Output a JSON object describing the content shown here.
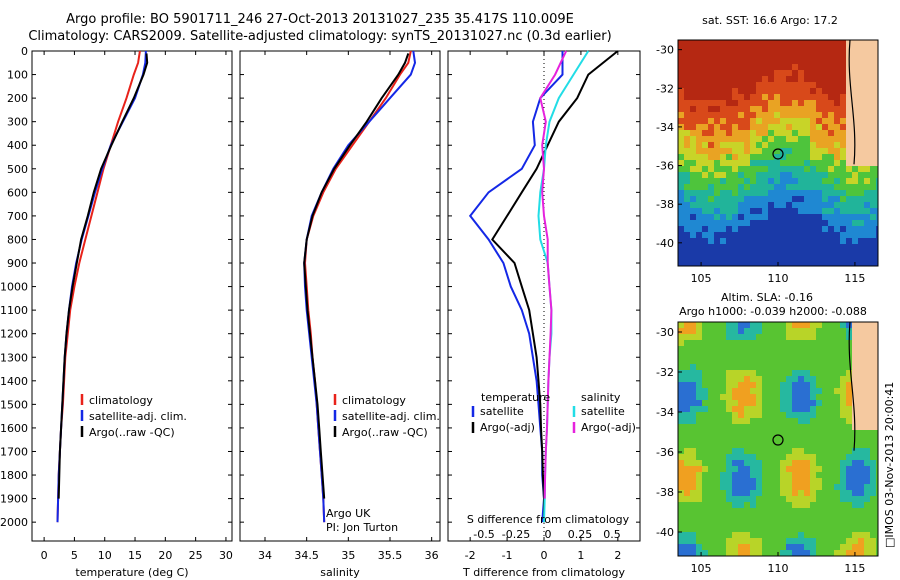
{
  "header": {
    "line1": "Argo profile: BO 5901711_246 27-Oct-2013 20131027_235 35.417S 110.009E",
    "line2": "Climatology: CARS2009. Satellite-adjusted climatology: synTS_20131027.nc (0.3d earlier)"
  },
  "stamp": "IMOS 03-Nov-2013 20:00:41",
  "colors": {
    "climatology": "#e8221a",
    "satellite": "#1428e6",
    "argo": "#000000",
    "sat_salinity": "#22dde6",
    "argo_salinity": "#e622dd"
  },
  "chart_data": [
    {
      "type": "line",
      "xlabel": "temperature (deg C)",
      "xlim": [
        -2,
        31
      ],
      "xticks": [
        0,
        5,
        10,
        15,
        20,
        25,
        30
      ],
      "ylim": [
        2080,
        0
      ],
      "yticks": [
        0,
        100,
        200,
        300,
        400,
        500,
        600,
        700,
        800,
        900,
        1000,
        1100,
        1200,
        1300,
        1400,
        1500,
        1600,
        1700,
        1800,
        1900,
        2000
      ],
      "legend": [
        "climatology",
        "satellite-adj. clim.",
        "Argo(..raw -QC)"
      ],
      "series": [
        {
          "name": "climatology",
          "color": "#e8221a",
          "x": [
            15.8,
            15.5,
            14.8,
            13.6,
            12.2,
            11.0,
            9.8,
            8.8,
            7.8,
            6.8,
            5.8,
            5.0,
            4.3,
            3.9,
            3.5,
            3.3,
            3.1,
            2.8,
            2.6,
            2.4,
            2.3,
            2.2
          ],
          "y": [
            0,
            50,
            100,
            200,
            300,
            400,
            500,
            600,
            700,
            800,
            900,
            1000,
            1100,
            1200,
            1300,
            1400,
            1500,
            1600,
            1700,
            1800,
            1900,
            2000
          ]
        },
        {
          "name": "satellite-adj. clim.",
          "color": "#1428e6",
          "x": [
            16.8,
            16.7,
            16.3,
            15.0,
            13.0,
            11.0,
            9.6,
            8.4,
            7.3,
            6.2,
            5.3,
            4.6,
            4.1,
            3.7,
            3.4,
            3.2,
            3.0,
            2.8,
            2.6,
            2.4,
            2.3,
            2.2
          ],
          "y": [
            0,
            50,
            100,
            200,
            300,
            400,
            500,
            600,
            700,
            800,
            900,
            1000,
            1100,
            1200,
            1300,
            1400,
            1500,
            1600,
            1700,
            1800,
            1900,
            2000
          ]
        },
        {
          "name": "Argo(..raw -QC)",
          "color": "#000000",
          "x": [
            16.9,
            17.0,
            16.4,
            14.8,
            12.9,
            11.1,
            9.4,
            8.2,
            7.2,
            6.1,
            5.4,
            4.7,
            4.1,
            3.7,
            3.4,
            3.2,
            3.0,
            2.8,
            2.6,
            2.5,
            2.4
          ],
          "y": [
            10,
            50,
            100,
            200,
            300,
            400,
            500,
            600,
            700,
            800,
            900,
            1000,
            1100,
            1200,
            1300,
            1400,
            1500,
            1600,
            1700,
            1800,
            1900
          ]
        }
      ]
    },
    {
      "type": "line",
      "xlabel": "salinity",
      "xlim": [
        33.7,
        36.1
      ],
      "xticks": [
        34,
        34.5,
        35,
        35.5,
        36
      ],
      "xticklabels": [
        "34",
        "34.5",
        "35",
        "35.5",
        "36"
      ],
      "ylim": [
        2080,
        0
      ],
      "legend": [
        "climatology",
        "satellite-adj. clim.",
        "Argo(..raw -QC)"
      ],
      "annotation": [
        "Argo UK",
        "PI: Jon Turton"
      ],
      "series": [
        {
          "name": "climatology",
          "color": "#e8221a",
          "x": [
            35.75,
            35.72,
            35.62,
            35.45,
            35.25,
            35.05,
            34.85,
            34.7,
            34.58,
            34.5,
            34.48,
            34.5,
            34.52,
            34.55,
            34.57,
            34.6,
            34.62,
            34.64,
            34.66,
            34.68,
            34.7,
            34.71
          ],
          "y": [
            0,
            50,
            100,
            200,
            300,
            400,
            500,
            600,
            700,
            800,
            900,
            1000,
            1100,
            1200,
            1300,
            1400,
            1500,
            1600,
            1700,
            1800,
            1900,
            2000
          ]
        },
        {
          "name": "satellite-adj. clim.",
          "color": "#1428e6",
          "x": [
            35.78,
            35.8,
            35.75,
            35.5,
            35.25,
            35.0,
            34.82,
            34.68,
            34.56,
            34.5,
            34.47,
            34.48,
            34.5,
            34.53,
            34.56,
            34.59,
            34.62,
            34.64,
            34.66,
            34.68,
            34.7,
            34.71
          ],
          "y": [
            0,
            50,
            100,
            200,
            300,
            400,
            500,
            600,
            700,
            800,
            900,
            1000,
            1100,
            1200,
            1300,
            1400,
            1500,
            1600,
            1700,
            1800,
            1900,
            2000
          ]
        },
        {
          "name": "Argo(..raw -QC)",
          "color": "#000000",
          "x": [
            35.72,
            35.68,
            35.6,
            35.4,
            35.22,
            35.02,
            34.83,
            34.68,
            34.57,
            34.5,
            34.47,
            34.49,
            34.51,
            34.54,
            34.57,
            34.6,
            34.63,
            34.65,
            34.67,
            34.69,
            34.71
          ],
          "y": [
            10,
            50,
            100,
            200,
            300,
            400,
            500,
            600,
            700,
            800,
            900,
            1000,
            1100,
            1200,
            1300,
            1400,
            1500,
            1600,
            1700,
            1800,
            1900
          ]
        }
      ]
    },
    {
      "type": "line",
      "xlabel": "T difference from climatology",
      "xlabel2": "S difference from climatology",
      "xlim": [
        -2.6,
        2.6
      ],
      "xticks": [
        -2,
        -1,
        0,
        1,
        2
      ],
      "sticks": [
        -0.5,
        -0.25,
        0,
        0.25,
        0.5
      ],
      "ylim": [
        2080,
        0
      ],
      "legend_titles": [
        "temperature",
        "salinity"
      ],
      "legend": [
        "satellite",
        "Argo(-adj)",
        "satellite",
        "Argo(-adj)"
      ],
      "series": [
        {
          "name": "satellite",
          "color": "#1428e6",
          "x": [
            0.5,
            0.5,
            -0.1,
            -0.3,
            -0.25,
            -0.6,
            -1.5,
            -2.0,
            -1.5,
            -1.1,
            -0.9,
            -0.6,
            -0.4,
            -0.3,
            -0.2,
            -0.15,
            -0.1,
            -0.05,
            -0.05,
            0,
            -0.05
          ],
          "y": [
            0,
            100,
            200,
            300,
            400,
            500,
            600,
            700,
            800,
            900,
            1000,
            1100,
            1200,
            1300,
            1400,
            1500,
            1600,
            1700,
            1800,
            1900,
            2000
          ]
        },
        {
          "name": "Argo(-adj)",
          "color": "#000000",
          "x": [
            2.0,
            1.2,
            0.9,
            0.4,
            0.1,
            -0.2,
            -0.6,
            -1.0,
            -1.4,
            -0.8,
            -0.6,
            -0.4,
            -0.3,
            -0.2,
            -0.15,
            -0.1,
            -0.08,
            -0.05,
            -0.03,
            0,
            0
          ],
          "y": [
            0,
            100,
            200,
            300,
            400,
            500,
            600,
            700,
            800,
            900,
            1000,
            1100,
            1200,
            1300,
            1400,
            1500,
            1600,
            1700,
            1800,
            1900,
            2000
          ]
        },
        {
          "name": "satellite",
          "color": "#22dde6",
          "x": [
            1.2,
            0.8,
            0.4,
            0.15,
            0.05,
            0.0,
            -0.1,
            -0.15,
            -0.1,
            0.1,
            0.15,
            0.2,
            0.2,
            0.15,
            0.12,
            0.1,
            0.08,
            0.05,
            0.03,
            0.02,
            0.0
          ],
          "y": [
            0,
            100,
            200,
            300,
            400,
            500,
            600,
            700,
            800,
            900,
            1000,
            1100,
            1200,
            1300,
            1400,
            1500,
            1600,
            1700,
            1800,
            1900,
            2000
          ]
        },
        {
          "name": "Argo(-adj)",
          "color": "#e622dd",
          "x": [
            0.6,
            0.3,
            -0.1,
            0.05,
            -0.05,
            0.0,
            -0.05,
            0.0,
            0.1,
            0.1,
            0.15,
            0.2,
            0.18,
            0.15,
            0.12,
            0.1,
            0.08,
            0.05,
            0.03,
            0.02
          ],
          "y": [
            0,
            100,
            200,
            300,
            400,
            500,
            600,
            700,
            800,
            900,
            1000,
            1100,
            1200,
            1300,
            1400,
            1500,
            1600,
            1700,
            1800,
            1900
          ]
        }
      ]
    },
    {
      "type": "heatmap",
      "title": "sat. SST: 16.6 Argo: 17.2",
      "xticks": [
        105,
        110,
        115
      ],
      "yticks": [
        -30,
        -32,
        -34,
        -36,
        -38,
        -40
      ],
      "xlim": [
        103.5,
        116.5
      ],
      "ylim": [
        -41.2,
        -29.5
      ],
      "marker": [
        110,
        -35.4
      ]
    },
    {
      "type": "heatmap",
      "title": "Altim. SLA: -0.16",
      "title2": "Argo h1000: -0.039 h2000: -0.088",
      "xticks": [
        105,
        110,
        115
      ],
      "yticks": [
        -30,
        -32,
        -34,
        -36,
        -38,
        -40
      ],
      "xlim": [
        103.5,
        116.5
      ],
      "ylim": [
        -41.2,
        -29.5
      ],
      "marker": [
        110,
        -35.4
      ]
    }
  ]
}
